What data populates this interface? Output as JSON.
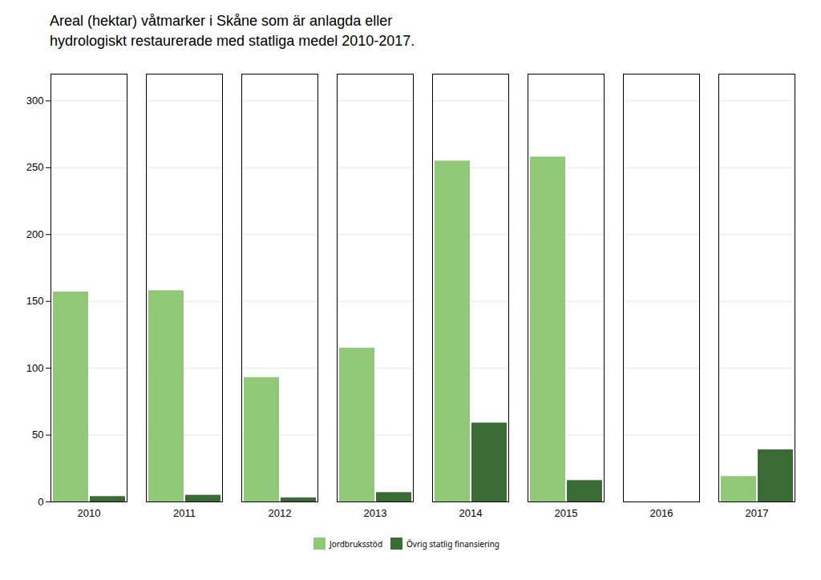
{
  "chart_data": {
    "type": "bar",
    "title": "Areal (hektar) våtmarker i Skåne som är anlagda eller\nhydrologiskt restaurerade med statliga medel 2010-2017.",
    "categories": [
      "2010",
      "2011",
      "2012",
      "2013",
      "2014",
      "2015",
      "2016",
      "2017"
    ],
    "series": [
      {
        "name": "Jordbruksstöd",
        "color": "#90C878",
        "values": [
          157,
          158,
          93,
          115,
          255,
          258,
          0,
          19
        ]
      },
      {
        "name": "Övrig statlig finansiering",
        "color": "#3A6B35",
        "values": [
          4,
          5,
          3,
          7,
          59,
          16,
          0,
          39
        ]
      }
    ],
    "ylim": [
      0,
      320
    ],
    "yticks": [
      0,
      50,
      100,
      150,
      200,
      250,
      300
    ],
    "grid": true,
    "legend": "bottom"
  }
}
